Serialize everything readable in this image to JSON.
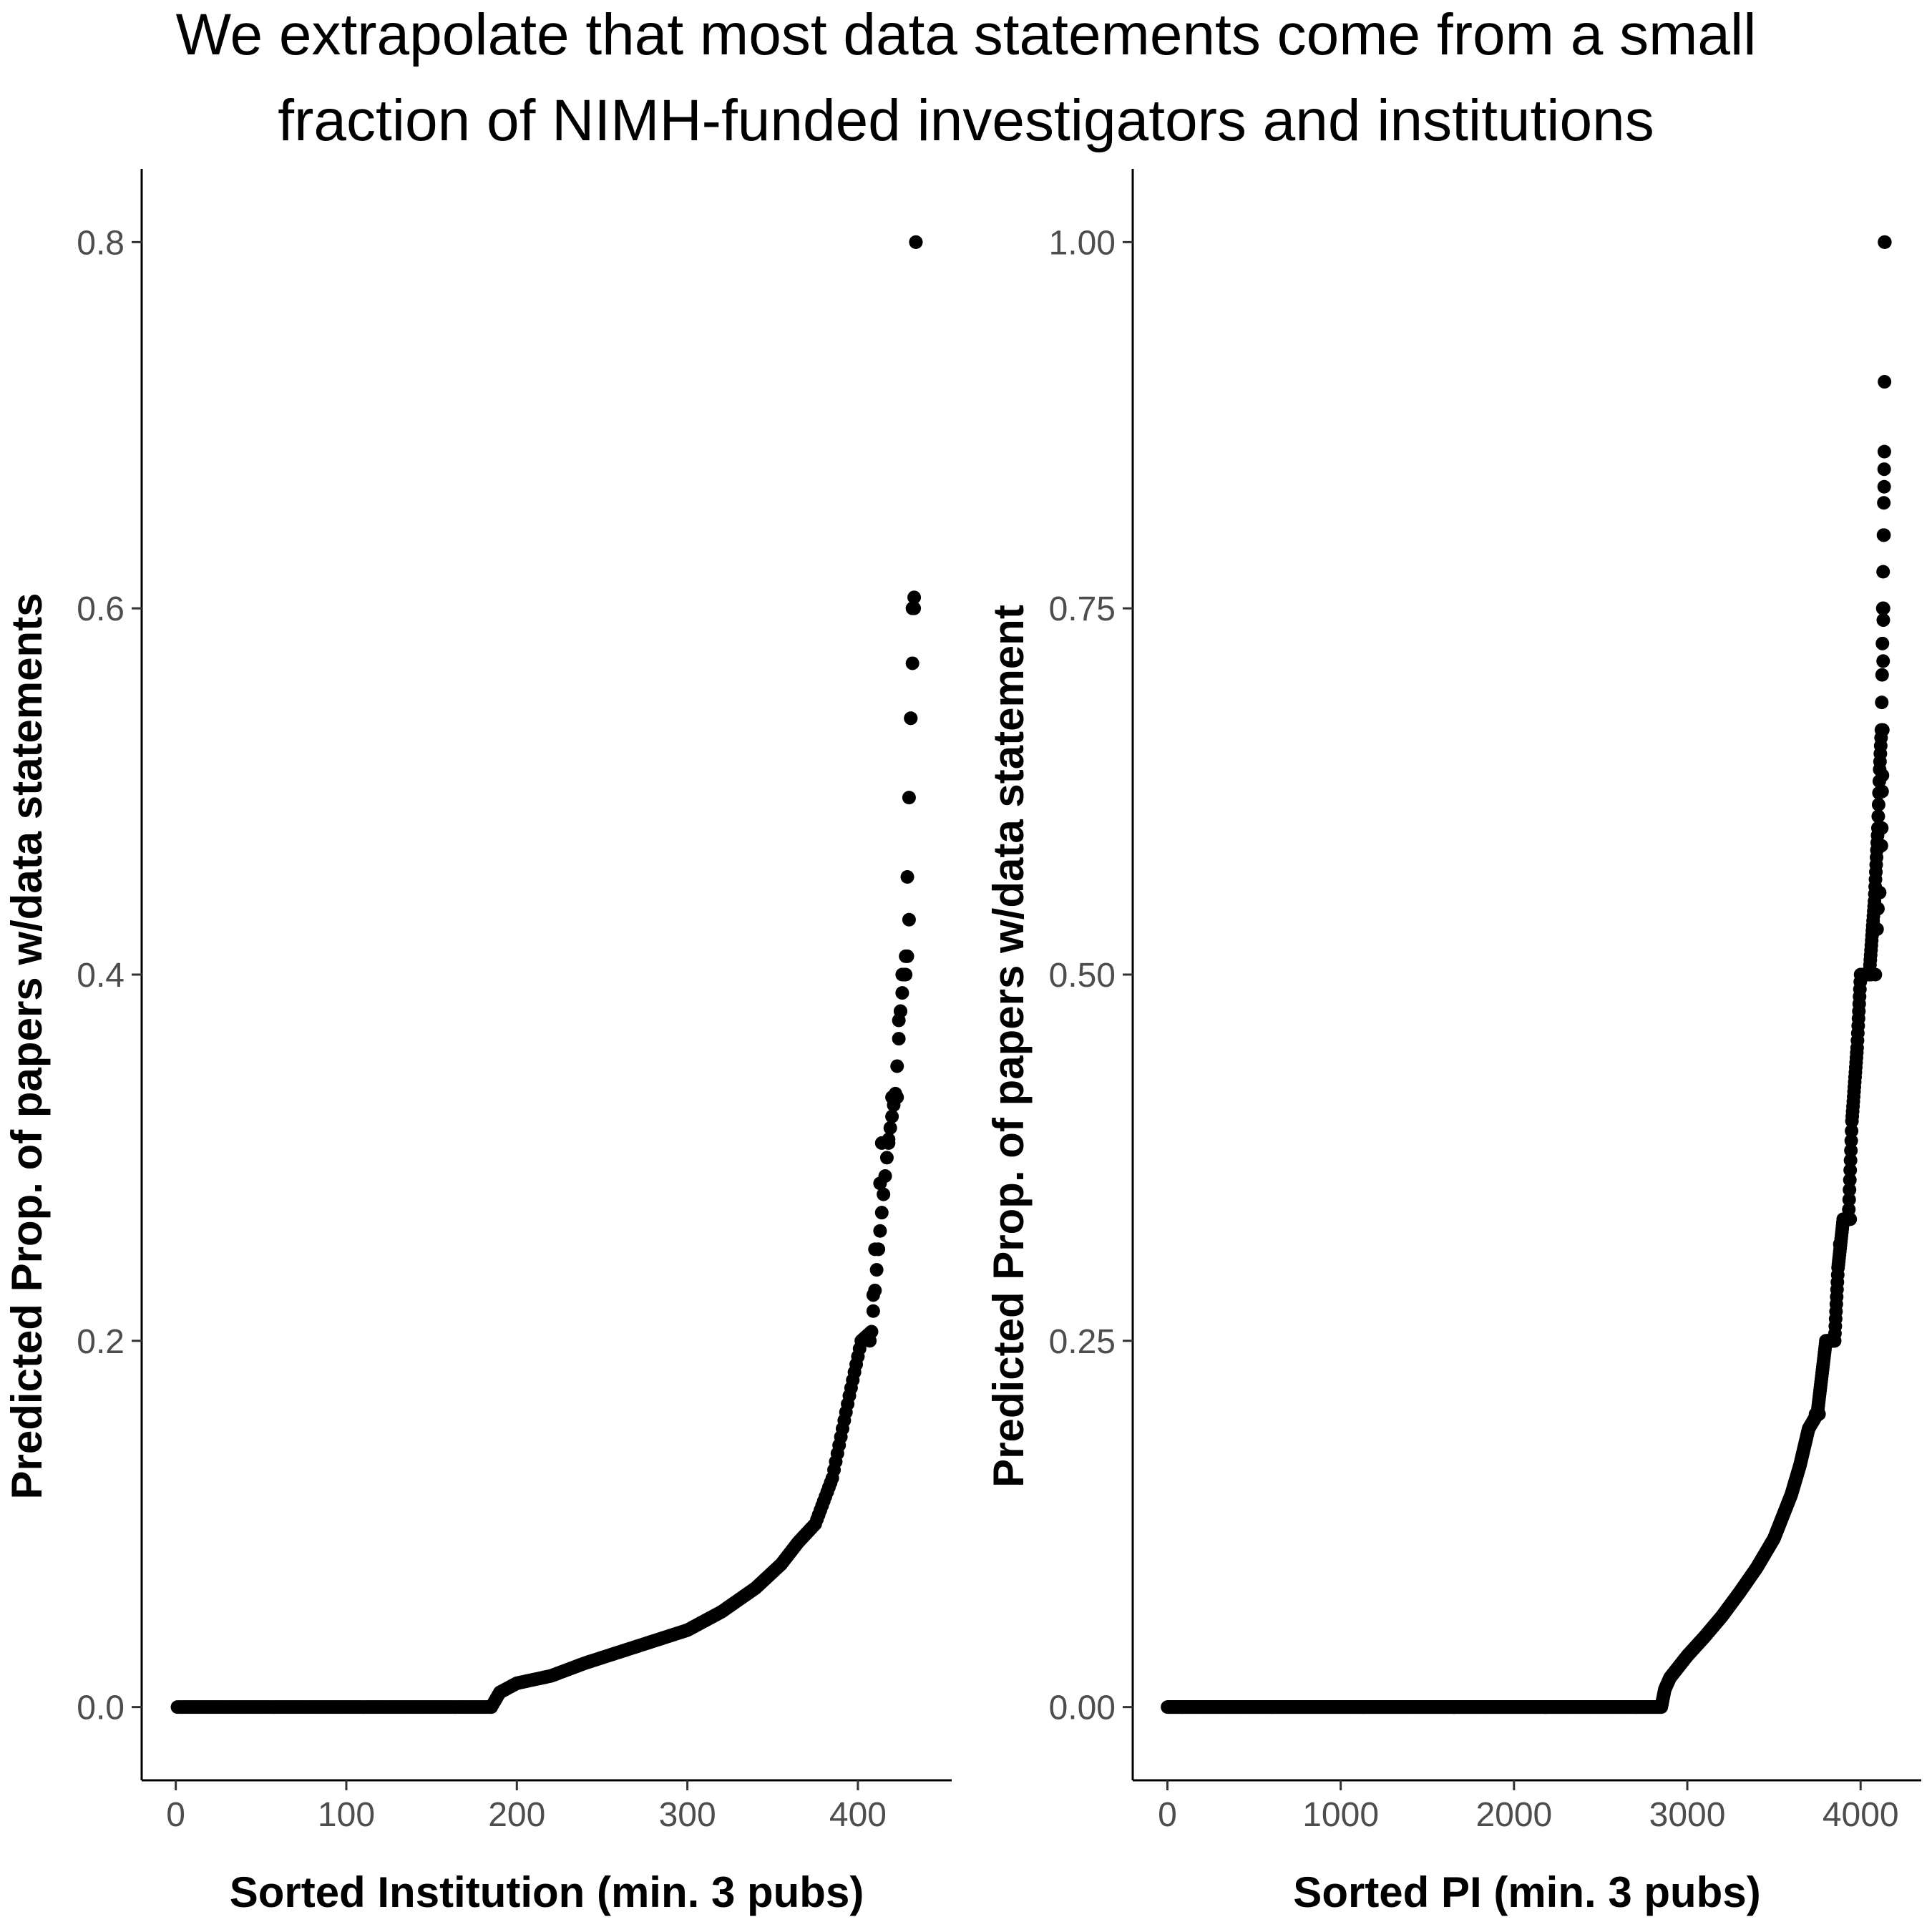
{
  "figure": {
    "title_line1": "We extrapolate that most data statements come from a small",
    "title_line2": "fraction of NIMH-funded investigators and institutions"
  },
  "chart_data": [
    {
      "type": "scatter",
      "xlabel": "Sorted Institution (min. 3 pubs)",
      "ylabel": "Predicted Prop. of papers w/data statements",
      "xlim": [
        -20,
        455
      ],
      "ylim": [
        -0.04,
        0.84
      ],
      "xticks": [
        0,
        100,
        200,
        300,
        400
      ],
      "xtick_labels": [
        "0",
        "100",
        "200",
        "300",
        "400"
      ],
      "yticks": [
        0,
        0.2,
        0.4,
        0.6,
        0.8
      ],
      "ytick_labels": [
        "0.0",
        "0.2",
        "0.4",
        "0.6",
        "0.8"
      ],
      "grid": false,
      "n_points": 434,
      "zero_until": 185,
      "curve": [
        [
          185,
          0.0
        ],
        [
          190,
          0.008
        ],
        [
          200,
          0.013
        ],
        [
          220,
          0.017
        ],
        [
          240,
          0.024
        ],
        [
          260,
          0.03
        ],
        [
          280,
          0.036
        ],
        [
          300,
          0.042
        ],
        [
          320,
          0.052
        ],
        [
          340,
          0.065
        ],
        [
          355,
          0.078
        ],
        [
          365,
          0.09
        ],
        [
          375,
          0.1
        ],
        [
          385,
          0.125
        ],
        [
          395,
          0.17
        ],
        [
          402,
          0.2
        ],
        [
          408,
          0.205
        ],
        [
          412,
          0.25
        ],
        [
          418,
          0.31
        ],
        [
          422,
          0.335
        ],
        [
          425,
          0.38
        ],
        [
          428,
          0.41
        ],
        [
          431,
          0.54
        ],
        [
          433,
          0.6
        ],
        [
          434,
          0.8
        ]
      ],
      "highlights": [
        [
          403,
          0.2
        ],
        [
          407,
          0.2
        ],
        [
          409,
          0.225
        ],
        [
          410,
          0.25
        ],
        [
          412,
          0.25
        ],
        [
          413,
          0.286
        ],
        [
          414,
          0.308
        ],
        [
          418,
          0.308
        ],
        [
          420,
          0.333
        ],
        [
          423,
          0.333
        ],
        [
          424,
          0.375
        ],
        [
          425,
          0.38
        ],
        [
          426,
          0.4
        ],
        [
          427,
          0.4
        ],
        [
          428,
          0.4
        ],
        [
          429,
          0.41
        ],
        [
          430,
          0.43
        ],
        [
          431,
          0.54
        ],
        [
          432,
          0.6
        ],
        [
          433,
          0.606
        ],
        [
          434,
          0.8
        ]
      ]
    },
    {
      "type": "scatter",
      "xlabel": "Sorted PI (min. 3 pubs)",
      "ylabel": "Predicted Prop. of papers w/data statement",
      "xlim": [
        -200,
        4350
      ],
      "ylim": [
        -0.05,
        1.05
      ],
      "xticks": [
        0,
        1000,
        2000,
        3000,
        4000
      ],
      "xtick_labels": [
        "0",
        "1000",
        "2000",
        "3000",
        "4000"
      ],
      "yticks": [
        0,
        0.25,
        0.5,
        0.75,
        1.0
      ],
      "ytick_labels": [
        "0.00",
        "0.25",
        "0.50",
        "0.75",
        "1.00"
      ],
      "grid": false,
      "n_points": 4140,
      "zero_until": 2850,
      "curve": [
        [
          2850,
          0.0
        ],
        [
          2870,
          0.012
        ],
        [
          2900,
          0.02
        ],
        [
          3000,
          0.035
        ],
        [
          3100,
          0.048
        ],
        [
          3200,
          0.062
        ],
        [
          3300,
          0.078
        ],
        [
          3400,
          0.095
        ],
        [
          3500,
          0.115
        ],
        [
          3600,
          0.145
        ],
        [
          3650,
          0.165
        ],
        [
          3700,
          0.19
        ],
        [
          3750,
          0.2
        ],
        [
          3800,
          0.25
        ],
        [
          3850,
          0.25
        ],
        [
          3870,
          0.3
        ],
        [
          3900,
          0.333
        ],
        [
          3930,
          0.333
        ],
        [
          3950,
          0.4
        ],
        [
          3980,
          0.45
        ],
        [
          4000,
          0.5
        ],
        [
          4050,
          0.5
        ],
        [
          4080,
          0.55
        ],
        [
          4100,
          0.6
        ],
        [
          4110,
          0.64
        ],
        [
          4120,
          0.667
        ],
        [
          4125,
          0.714
        ],
        [
          4128,
          0.75
        ],
        [
          4132,
          0.8
        ],
        [
          4135,
          0.833
        ],
        [
          4137,
          0.857
        ],
        [
          4140,
          1.0
        ]
      ],
      "highlights": [
        [
          4138,
          1.0
        ],
        [
          4137,
          0.857
        ],
        [
          4136,
          0.833
        ],
        [
          4135,
          0.8
        ],
        [
          4132,
          0.75
        ],
        [
          4131,
          0.742
        ],
        [
          4130,
          0.714
        ],
        [
          4128,
          0.667
        ],
        [
          4126,
          0.636
        ],
        [
          4124,
          0.625
        ],
        [
          4122,
          0.6
        ],
        [
          4120,
          0.588
        ],
        [
          4110,
          0.556
        ],
        [
          4100,
          0.545
        ],
        [
          4095,
          0.531
        ],
        [
          4085,
          0.5
        ],
        [
          4060,
          0.5
        ],
        [
          3940,
          0.333
        ],
        [
          3920,
          0.333
        ],
        [
          3900,
          0.333
        ],
        [
          3880,
          0.316
        ],
        [
          3850,
          0.25
        ],
        [
          3830,
          0.25
        ],
        [
          3800,
          0.25
        ],
        [
          3760,
          0.2
        ],
        [
          3740,
          0.2
        ]
      ]
    }
  ]
}
